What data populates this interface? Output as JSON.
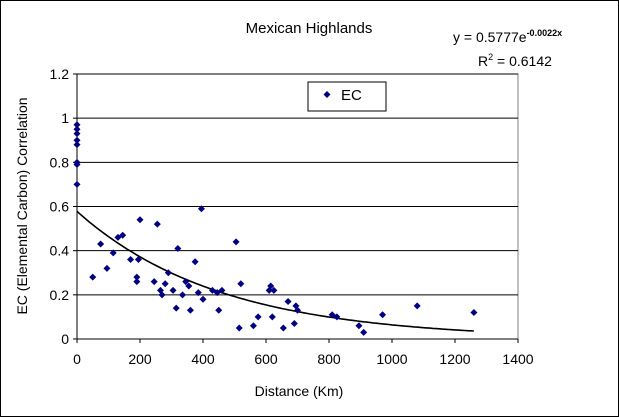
{
  "chart_data": {
    "type": "scatter",
    "title": "Mexican Highlands",
    "xlabel": "Distance (Km)",
    "ylabel": "EC (Elemental Carbon) Correlation",
    "xlim": [
      0,
      1400
    ],
    "ylim": [
      0,
      1.2
    ],
    "x_ticks": [
      "0",
      "200",
      "400",
      "600",
      "800",
      "1000",
      "1200",
      "1400"
    ],
    "y_ticks": [
      "0",
      "0.2",
      "0.4",
      "0.6",
      "0.8",
      "1",
      "1.2"
    ],
    "grid": true,
    "legend_position": "top-center",
    "series": [
      {
        "name": "EC",
        "color": "#000080",
        "marker": "diamond",
        "points": [
          [
            0,
            0.97
          ],
          [
            0,
            0.95
          ],
          [
            0,
            0.93
          ],
          [
            0,
            0.9
          ],
          [
            0,
            0.88
          ],
          [
            0,
            0.8
          ],
          [
            0,
            0.79
          ],
          [
            0,
            0.7
          ],
          [
            50,
            0.28
          ],
          [
            75,
            0.43
          ],
          [
            95,
            0.32
          ],
          [
            115,
            0.39
          ],
          [
            130,
            0.46
          ],
          [
            145,
            0.47
          ],
          [
            170,
            0.36
          ],
          [
            190,
            0.28
          ],
          [
            190,
            0.26
          ],
          [
            195,
            0.36
          ],
          [
            200,
            0.54
          ],
          [
            245,
            0.26
          ],
          [
            255,
            0.52
          ],
          [
            265,
            0.22
          ],
          [
            270,
            0.2
          ],
          [
            280,
            0.25
          ],
          [
            290,
            0.3
          ],
          [
            305,
            0.22
          ],
          [
            315,
            0.14
          ],
          [
            320,
            0.41
          ],
          [
            335,
            0.2
          ],
          [
            345,
            0.26
          ],
          [
            355,
            0.24
          ],
          [
            360,
            0.13
          ],
          [
            375,
            0.35
          ],
          [
            385,
            0.21
          ],
          [
            395,
            0.59
          ],
          [
            400,
            0.18
          ],
          [
            430,
            0.22
          ],
          [
            445,
            0.21
          ],
          [
            450,
            0.13
          ],
          [
            460,
            0.22
          ],
          [
            505,
            0.44
          ],
          [
            515,
            0.05
          ],
          [
            520,
            0.25
          ],
          [
            560,
            0.06
          ],
          [
            575,
            0.1
          ],
          [
            610,
            0.22
          ],
          [
            615,
            0.24
          ],
          [
            620,
            0.1
          ],
          [
            625,
            0.22
          ],
          [
            655,
            0.05
          ],
          [
            670,
            0.17
          ],
          [
            690,
            0.07
          ],
          [
            695,
            0.15
          ],
          [
            700,
            0.13
          ],
          [
            810,
            0.11
          ],
          [
            825,
            0.1
          ],
          [
            895,
            0.06
          ],
          [
            910,
            0.03
          ],
          [
            970,
            0.11
          ],
          [
            1080,
            0.15
          ],
          [
            1260,
            0.12
          ]
        ]
      }
    ],
    "trendline": {
      "type": "exponential",
      "a": 0.5777,
      "b": -0.0022,
      "x_range": [
        0,
        1260
      ],
      "equation_prefix": "y = 0.5777e",
      "equation_exponent": "-0.0022x",
      "r2_prefix": "R",
      "r2_suffix": " = 0.6142"
    }
  }
}
